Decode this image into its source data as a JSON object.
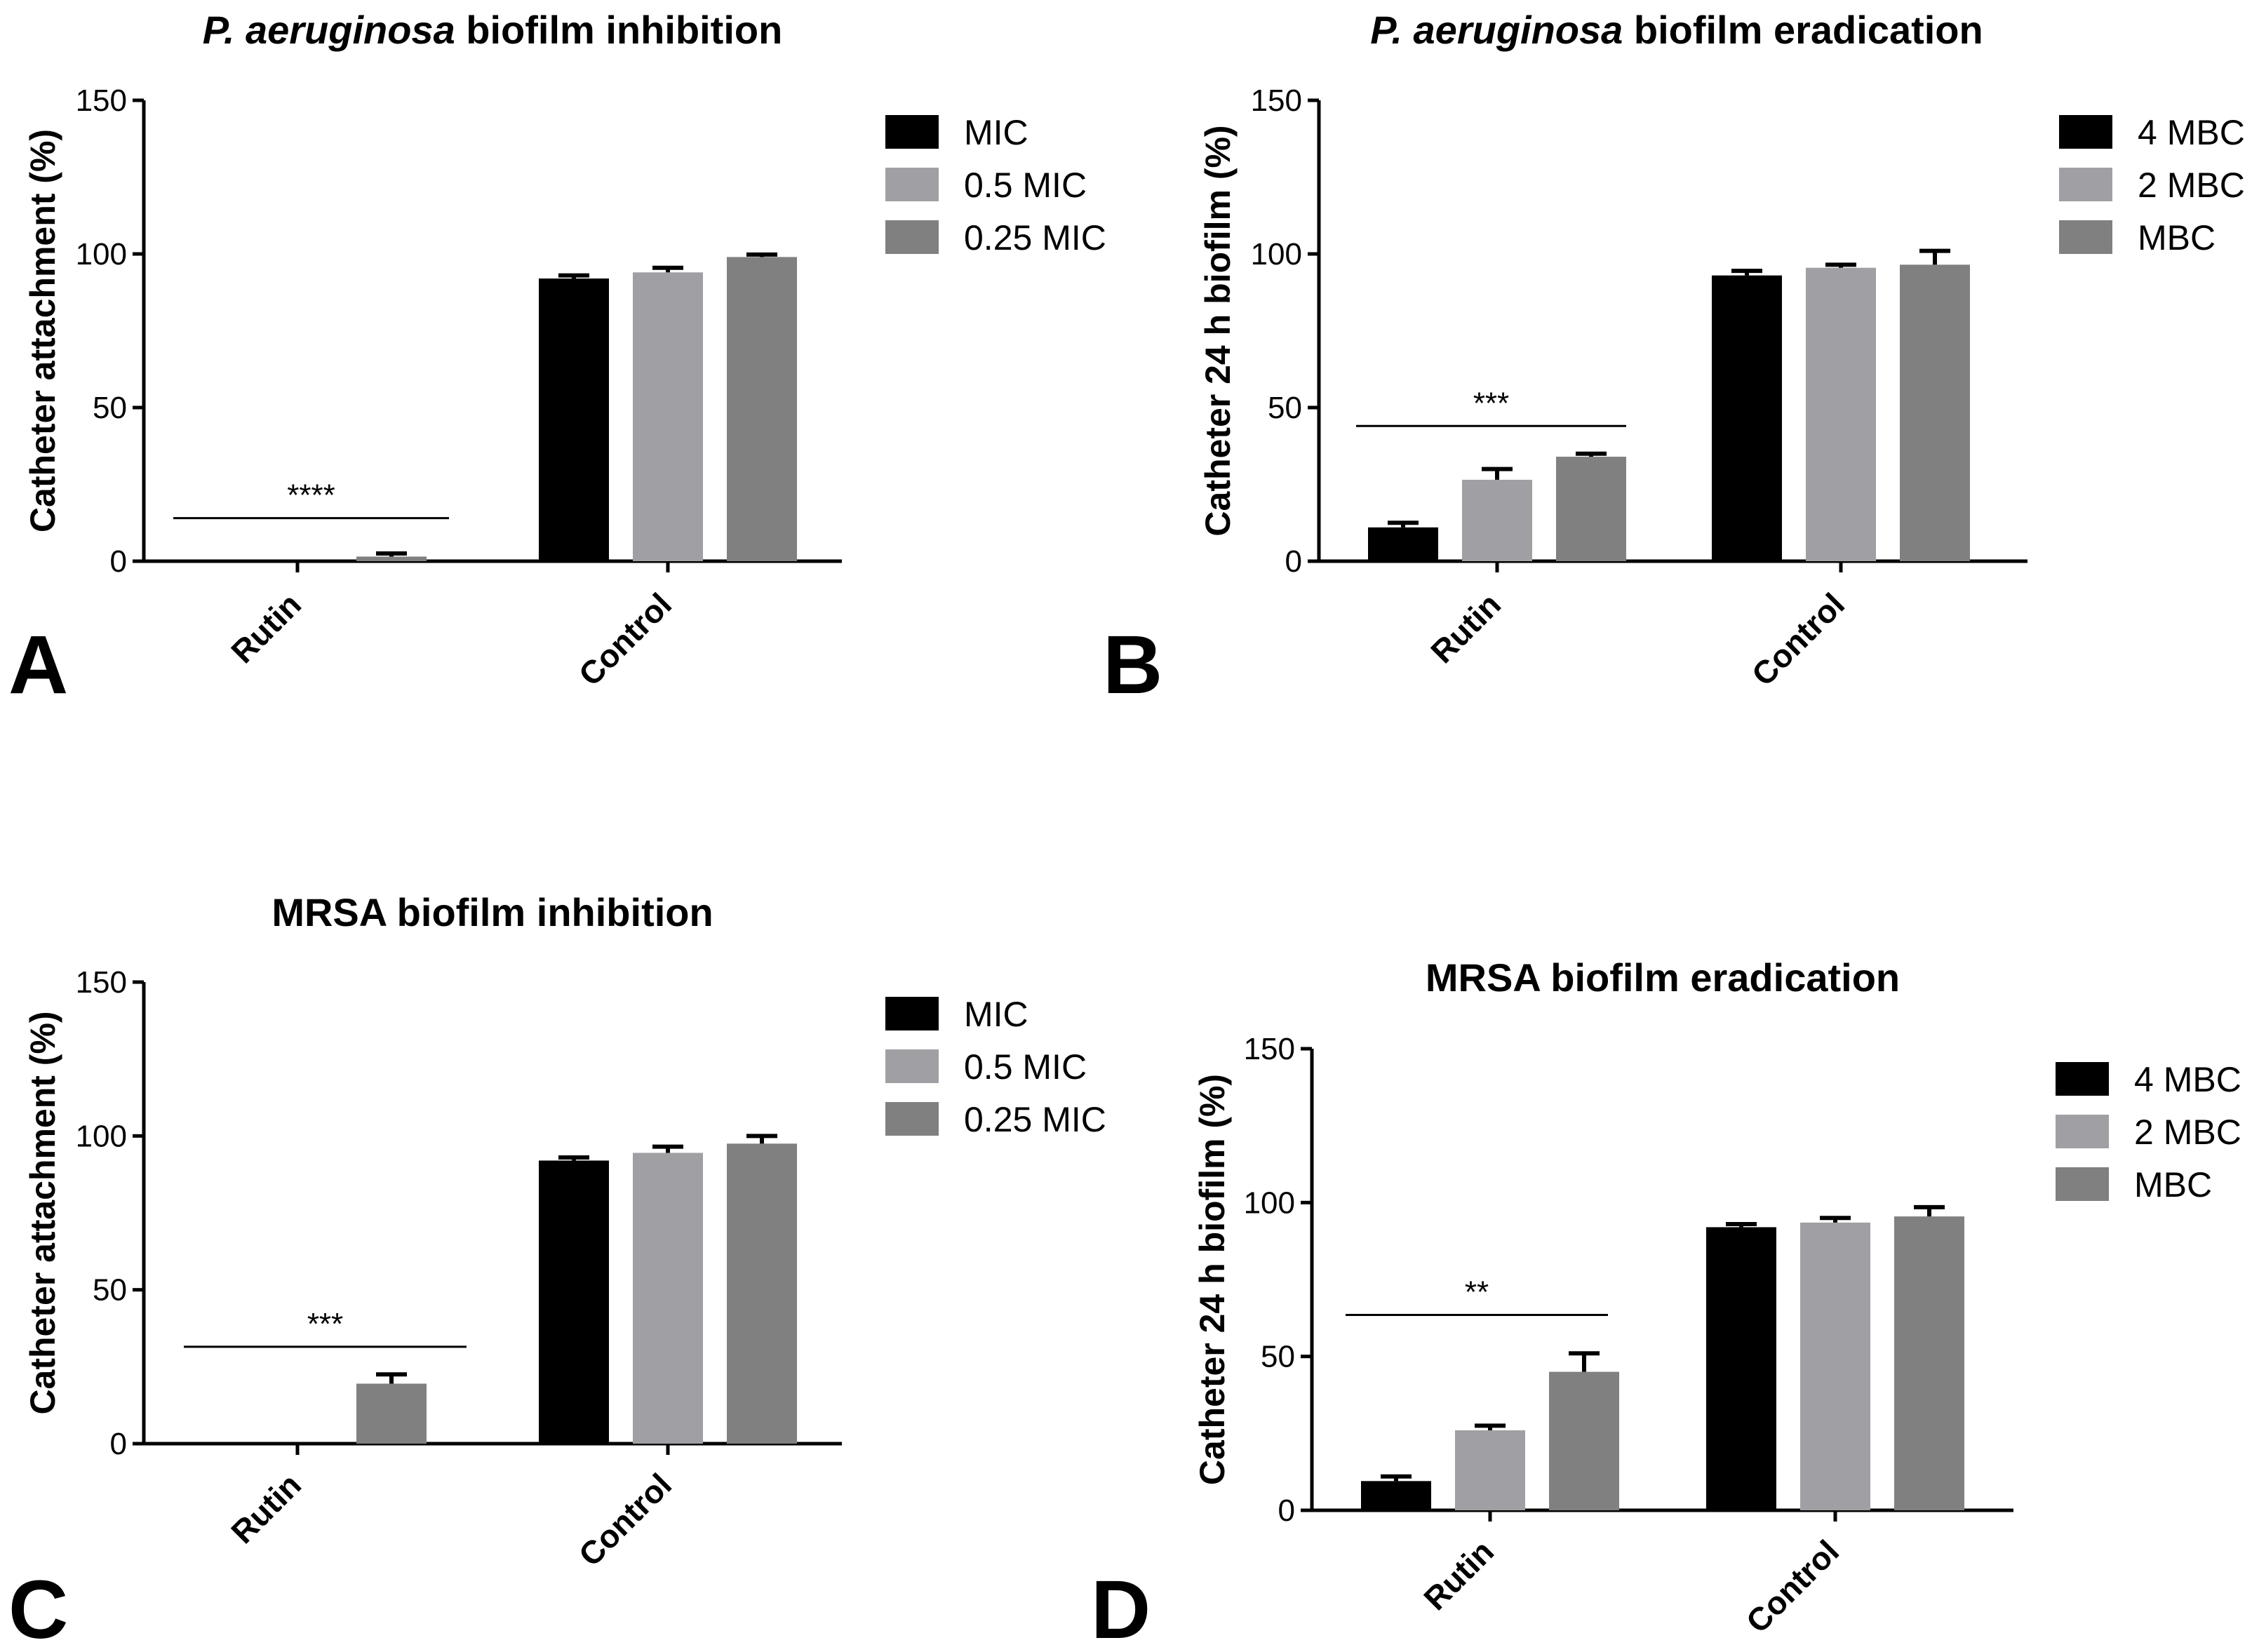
{
  "chart_data": [
    {
      "panel": "A",
      "type": "bar",
      "title_italic": "P. aeruginosa",
      "title_rest": " biofilm inhibition",
      "ylabel": "Catheter attachment (%)",
      "ylim": [
        0,
        150
      ],
      "yticks": [
        "0",
        "50",
        "100",
        "150"
      ],
      "categories": [
        "Rutin",
        "Control"
      ],
      "series": [
        {
          "name": "MIC",
          "color": "#000000",
          "values": [
            0,
            92
          ],
          "errors": [
            0,
            1
          ]
        },
        {
          "name": "0.5 MIC",
          "color": "#a0a0a4",
          "values": [
            0,
            94
          ],
          "errors": [
            0,
            1.5
          ]
        },
        {
          "name": "0.25 MIC",
          "color": "#808080",
          "values": [
            1.5,
            99
          ],
          "errors": [
            1,
            0.8
          ]
        }
      ],
      "significance": "****",
      "significance_y": 14
    },
    {
      "panel": "B",
      "type": "bar",
      "title_italic": "P. aeruginosa",
      "title_rest": " biofilm eradication",
      "ylabel": "Catheter 24 h biofilm (%)",
      "ylim": [
        0,
        150
      ],
      "yticks": [
        "0",
        "50",
        "100",
        "150"
      ],
      "categories": [
        "Rutin",
        "Control"
      ],
      "series": [
        {
          "name": "4 MBC",
          "color": "#000000",
          "values": [
            11,
            93
          ],
          "errors": [
            1.5,
            1.5
          ]
        },
        {
          "name": "2 MBC",
          "color": "#a0a0a4",
          "values": [
            26.5,
            95.5
          ],
          "errors": [
            3.5,
            1
          ]
        },
        {
          "name": "MBC",
          "color": "#808080",
          "values": [
            34,
            96.5
          ],
          "errors": [
            1,
            4.5
          ]
        }
      ],
      "significance": "***",
      "significance_y": 44
    },
    {
      "panel": "C",
      "type": "bar",
      "title_italic": "",
      "title_rest": "MRSA biofilm inhibition",
      "ylabel": "Catheter attachment (%)",
      "ylim": [
        0,
        150
      ],
      "yticks": [
        "0",
        "50",
        "100",
        "150"
      ],
      "categories": [
        "Rutin",
        "Control"
      ],
      "series": [
        {
          "name": "MIC",
          "color": "#000000",
          "values": [
            0,
            92
          ],
          "errors": [
            0,
            1
          ]
        },
        {
          "name": "0.5 MIC",
          "color": "#a0a0a4",
          "values": [
            0,
            94.5
          ],
          "errors": [
            0,
            2
          ]
        },
        {
          "name": "0.25 MIC",
          "color": "#808080",
          "values": [
            19.5,
            97.5
          ],
          "errors": [
            3,
            2.5
          ]
        }
      ],
      "significance": "***",
      "significance_y": 31.5
    },
    {
      "panel": "D",
      "type": "bar",
      "title_italic": "",
      "title_rest": "MRSA biofilm eradication",
      "ylabel": "Catheter 24 h biofilm (%)",
      "ylim": [
        0,
        150
      ],
      "yticks": [
        "0",
        "50",
        "100",
        "150"
      ],
      "categories": [
        "Rutin",
        "Control"
      ],
      "series": [
        {
          "name": "4 MBC",
          "color": "#000000",
          "values": [
            9.5,
            92
          ],
          "errors": [
            1.5,
            1
          ]
        },
        {
          "name": "2 MBC",
          "color": "#a0a0a4",
          "values": [
            26,
            93.5
          ],
          "errors": [
            1.5,
            1.5
          ]
        },
        {
          "name": "MBC",
          "color": "#808080",
          "values": [
            45,
            95.5
          ],
          "errors": [
            6,
            3
          ]
        }
      ],
      "significance": "**",
      "significance_y": 63.5
    }
  ]
}
